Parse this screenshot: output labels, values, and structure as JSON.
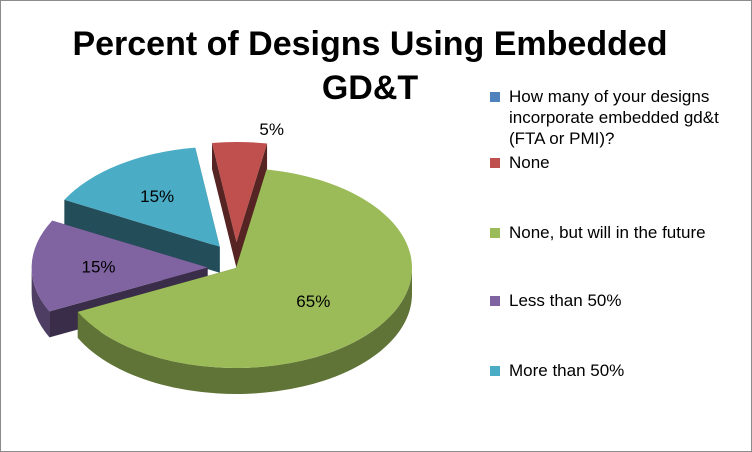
{
  "chart_data": {
    "type": "pie",
    "title": "Percent of Designs Using Embedded GD&T",
    "three_d": true,
    "legend_position": "right",
    "legend": [
      {
        "label": "How many of your designs incorporate embedded gd&t (FTA or PMI)?",
        "color": "#4F81BD"
      },
      {
        "label": "None",
        "color": "#C0504D"
      },
      {
        "label": "None, but will in the future",
        "color": "#9BBB59"
      },
      {
        "label": "Less than 50%",
        "color": "#8064A2"
      },
      {
        "label": "More than 50%",
        "color": "#4BACC6"
      }
    ],
    "slices": [
      {
        "category": "None",
        "value": 5,
        "label": "5%",
        "color": "#C0504D",
        "exploded": true
      },
      {
        "category": "None, but will in the future",
        "value": 65,
        "label": "65%",
        "color": "#9BBB59",
        "exploded": false
      },
      {
        "category": "Less than 50%",
        "value": 15,
        "label": "15%",
        "color": "#8064A2",
        "exploded": true
      },
      {
        "category": "More than 50%",
        "value": 15,
        "label": "15%",
        "color": "#4BACC6",
        "exploded": true
      }
    ]
  }
}
